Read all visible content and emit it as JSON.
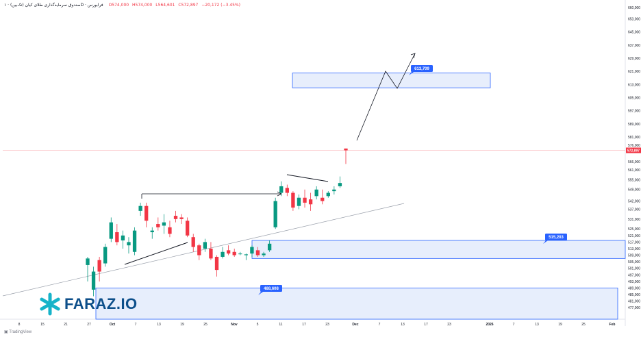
{
  "header": {
    "symbol": "صندوق سرمایه‌گذاری طلای کیان (تک‌بین) · ۱D · فرابورس",
    "open": "O574,000",
    "high": "H574,000",
    "low": "L564,601",
    "close": "C572,897",
    "change": "−20,172 (−3.45%)"
  },
  "attribution": "TradingView",
  "watermark": {
    "text": "FARAZ.IO",
    "icon": "snowflake-star-icon"
  },
  "colors": {
    "up": "#089981",
    "down": "#f23645",
    "zone_fill": "#e3ebfb",
    "zone_border": "#2962ff",
    "label_bg": "#2962ff"
  },
  "chart_data": {
    "type": "candlestick",
    "y_axis": {
      "range": [
        470000,
        662000
      ],
      "tick_labels": [
        "660,000",
        "653,000",
        "645,000",
        "637,000",
        "629,000",
        "621,000",
        "613,000",
        "605,000",
        "597,000",
        "589,000",
        "581,000",
        "576,000",
        "566,000",
        "561,000",
        "555,000",
        "549,000",
        "542,000",
        "537,000",
        "531,000",
        "525,000",
        "521,000",
        "517,000",
        "513,000",
        "509,000",
        "505,000",
        "501,000",
        "497,000",
        "493,000",
        "489,000",
        "485,000",
        "481,000",
        "477,000"
      ]
    },
    "x_axis": {
      "tick_labels": [
        "8",
        "15",
        "21",
        "27",
        "Oct",
        "7",
        "13",
        "19",
        "25",
        "Nov",
        "5",
        "11",
        "17",
        "23",
        "Dec",
        "7",
        "13",
        "17",
        "23",
        "2026",
        "7",
        "13",
        "19",
        "25",
        "Feb"
      ]
    },
    "last_price_label": "572,897",
    "candles": [
      {
        "o": 503000,
        "h": 508000,
        "l": 493000,
        "c": 507000
      },
      {
        "o": 488000,
        "h": 502000,
        "l": 484000,
        "c": 499000
      },
      {
        "o": 506000,
        "h": 508000,
        "l": 493000,
        "c": 499000
      },
      {
        "o": 504000,
        "h": 516000,
        "l": 502000,
        "c": 514000
      },
      {
        "o": 519000,
        "h": 532000,
        "l": 517000,
        "c": 529000
      },
      {
        "o": 523000,
        "h": 528000,
        "l": 515000,
        "c": 517000
      },
      {
        "o": 518000,
        "h": 524000,
        "l": 513000,
        "c": 521000
      },
      {
        "o": 515000,
        "h": 520000,
        "l": 510000,
        "c": 517000
      },
      {
        "o": 511000,
        "h": 526000,
        "l": 509000,
        "c": 524000
      },
      {
        "o": 536000,
        "h": 541000,
        "l": 533000,
        "c": 539000
      },
      {
        "o": 539000,
        "h": 541000,
        "l": 526000,
        "c": 530000
      },
      {
        "o": 523000,
        "h": 526000,
        "l": 519000,
        "c": 524000
      },
      {
        "o": 528000,
        "h": 532000,
        "l": 524000,
        "c": 526000
      },
      {
        "o": 527000,
        "h": 534000,
        "l": 522000,
        "c": 529000
      },
      {
        "o": 526000,
        "h": 530000,
        "l": 520000,
        "c": 522000
      },
      {
        "o": 533000,
        "h": 536000,
        "l": 529000,
        "c": 531000
      },
      {
        "o": 532000,
        "h": 534000,
        "l": 528000,
        "c": 531000
      },
      {
        "o": 530000,
        "h": 532000,
        "l": 520000,
        "c": 521000
      },
      {
        "o": 520000,
        "h": 522000,
        "l": 511000,
        "c": 514000
      },
      {
        "o": 515000,
        "h": 516000,
        "l": 506000,
        "c": 509000
      },
      {
        "o": 513000,
        "h": 519000,
        "l": 511000,
        "c": 517000
      },
      {
        "o": 513000,
        "h": 517000,
        "l": 506000,
        "c": 507000
      },
      {
        "o": 508000,
        "h": 509000,
        "l": 496000,
        "c": 500000
      },
      {
        "o": 508000,
        "h": 514000,
        "l": 507000,
        "c": 511000
      },
      {
        "o": 512000,
        "h": 515000,
        "l": 509000,
        "c": 510000
      },
      {
        "o": 511000,
        "h": 513000,
        "l": 508000,
        "c": 509000
      },
      {
        "o": 510000,
        "h": 511000,
        "l": 509000,
        "c": 510000
      },
      {
        "o": 509000,
        "h": 510000,
        "l": 506000,
        "c": 509500
      },
      {
        "o": 510000,
        "h": 515000,
        "l": 508000,
        "c": 514000
      },
      {
        "o": 512000,
        "h": 514000,
        "l": 508000,
        "c": 509000
      },
      {
        "o": 509000,
        "h": 511000,
        "l": 508000,
        "c": 510000
      },
      {
        "o": 512000,
        "h": 518000,
        "l": 511000,
        "c": 516000
      },
      {
        "o": 526000,
        "h": 544000,
        "l": 525000,
        "c": 542000
      },
      {
        "o": 547000,
        "h": 554000,
        "l": 545000,
        "c": 551000
      },
      {
        "o": 550000,
        "h": 552000,
        "l": 545000,
        "c": 547000
      },
      {
        "o": 547000,
        "h": 548000,
        "l": 536000,
        "c": 538000
      },
      {
        "o": 539000,
        "h": 546000,
        "l": 537000,
        "c": 544000
      },
      {
        "o": 544000,
        "h": 549000,
        "l": 538000,
        "c": 541000
      },
      {
        "o": 543000,
        "h": 547000,
        "l": 536000,
        "c": 540000
      },
      {
        "o": 545000,
        "h": 551000,
        "l": 543000,
        "c": 549000
      },
      {
        "o": 544000,
        "h": 549000,
        "l": 540000,
        "c": 542000
      },
      {
        "o": 545000,
        "h": 548000,
        "l": 544000,
        "c": 547000
      },
      {
        "o": 548000,
        "h": 551000,
        "l": 546000,
        "c": 549000
      },
      {
        "o": 551000,
        "h": 557000,
        "l": 550000,
        "c": 553000
      },
      {
        "o": 574000,
        "h": 574000,
        "l": 564601,
        "c": 572897
      }
    ],
    "annotations": {
      "zones": [
        {
          "name": "target-zone",
          "from": 611000,
          "to": 620000,
          "label": "613,709"
        },
        {
          "name": "support-zone",
          "from": 507000,
          "to": 518000,
          "label": "515,203"
        },
        {
          "name": "lower-zone",
          "from": 470000,
          "to": 489000,
          "label": "488,608"
        }
      ]
    }
  }
}
